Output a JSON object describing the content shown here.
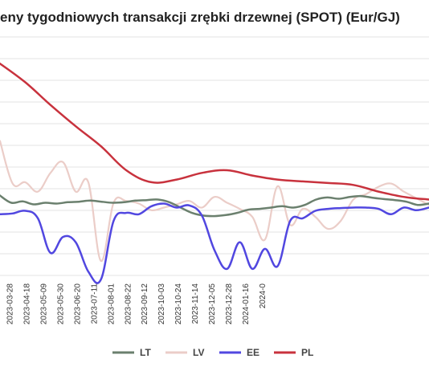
{
  "chart_data": {
    "type": "line",
    "title": "eny tygodniowych transakcji zrębki drzewnej (SPOT) (Eur/GJ)",
    "xlabel": "",
    "ylabel": "",
    "grid": true,
    "legend_position": "bottom",
    "x_tick_labels": [
      "2023-03-28",
      "2023-04-18",
      "2023-05-09",
      "2023-05-30",
      "2023-06-20",
      "2023-07-11",
      "2023-08-01",
      "2023-08-22",
      "2023-09-12",
      "2023-10-03",
      "2023-10-24",
      "2023-11-14",
      "2023-12-05",
      "2023-12-28",
      "2024-01-16",
      "2024-0"
    ],
    "colors": {
      "LT": "#6b806e",
      "LV": "#ebcdc8",
      "EE": "#5147e0",
      "PL": "#c8323d"
    },
    "series": [
      {
        "name": "LT",
        "values": [
          7.05,
          6.78,
          6.83,
          6.72,
          6.78,
          6.75,
          6.8,
          6.82,
          6.86,
          6.82,
          6.78,
          6.8,
          6.86,
          6.88,
          6.9,
          6.8,
          6.6,
          6.4,
          6.3,
          6.28,
          6.32,
          6.4,
          6.52,
          6.55,
          6.6,
          6.65,
          6.6,
          6.7,
          6.9,
          6.98,
          6.93,
          7.0,
          7.03,
          6.97,
          6.92,
          6.88,
          6.82,
          6.7,
          6.75
        ]
      },
      {
        "name": "LV",
        "values": [
          9.1,
          7.5,
          7.55,
          7.2,
          7.9,
          8.3,
          7.2,
          7.55,
          4.6,
          6.78,
          6.85,
          6.75,
          6.5,
          6.6,
          6.72,
          6.85,
          6.6,
          7.0,
          6.78,
          6.55,
          6.25,
          5.4,
          7.4,
          5.95,
          6.55,
          6.25,
          5.8,
          6.1,
          6.9,
          7.1,
          7.38,
          7.5,
          7.2,
          6.95,
          6.7
        ]
      },
      {
        "name": "EE",
        "values": [
          6.35,
          6.38,
          6.48,
          6.2,
          4.9,
          5.5,
          5.3,
          4.2,
          3.9,
          6.1,
          6.4,
          6.35,
          6.65,
          6.75,
          6.6,
          6.68,
          6.3,
          5.0,
          4.3,
          5.3,
          4.3,
          5.05,
          4.4,
          6.1,
          6.2,
          6.48,
          6.55,
          6.58,
          6.6,
          6.6,
          6.55,
          6.35,
          6.6,
          6.5,
          6.6
        ]
      },
      {
        "name": "PL",
        "values": [
          12.0,
          11.3,
          10.45,
          9.65,
          8.9,
          8.0,
          7.55,
          7.65,
          7.9,
          8.0,
          7.8,
          7.65,
          7.58,
          7.52,
          7.45,
          7.2,
          7.0,
          6.9
        ]
      }
    ]
  },
  "legend": {
    "items": [
      "LT",
      "LV",
      "EE",
      "PL"
    ]
  }
}
